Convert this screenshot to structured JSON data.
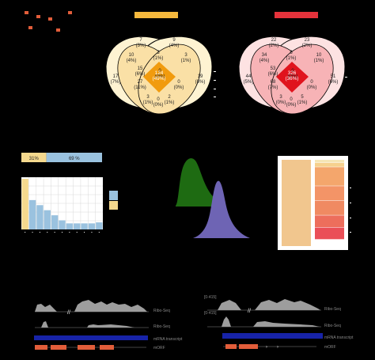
{
  "venn_left": {
    "regions": [
      "7\n(3%)",
      "9\n(4%)",
      "10\n(4%)",
      "3\n(1%)",
      "3\n(1%)",
      "0\n(0%)",
      "17\n(7%)",
      "15\n(6%)",
      "124\n(49%)",
      "19\n(8%)",
      "27\n(11%)",
      "0\n(0%)",
      "3\n(1%)",
      "2\n(1%)",
      "0\n(0%)"
    ],
    "colors": {
      "outer": "#fdf2d0",
      "mid": "#fae0a6",
      "inner": "#f5c66a",
      "core": "#f19b0e"
    }
  },
  "venn_right": {
    "regions": [
      "22\n(2%)",
      "23\n(2%)",
      "34\n(4%)",
      "6\n(1%)",
      "10\n(1%)",
      "0\n(0%)",
      "44\n(5%)",
      "53\n(6%)",
      "326\n(36%)",
      "51\n(6%)",
      "68\n(7%)",
      "0\n(0%)",
      "3\n(0%)",
      "5\n(1%)",
      "0\n(0%)"
    ],
    "colors": {
      "outer": "#fde2e2",
      "mid": "#f7b3b6",
      "inner": "#f08089",
      "core": "#e0131d"
    }
  },
  "split_bar": {
    "left_label": "31%",
    "right_label": "69 %",
    "left_fraction": 0.31,
    "left_color": "#f5d98e",
    "right_color": "#9ac2df"
  },
  "chart_data": [
    {
      "type": "bar",
      "values": [
        100,
        58,
        48,
        38,
        28,
        18,
        12,
        12,
        12,
        12,
        14
      ],
      "first_color": "#f5d98e",
      "bar_color": "#9ac2df",
      "grid": true
    },
    {
      "type": "area",
      "series": [
        {
          "color": "#1e6b12"
        },
        {
          "color": "#6e64b4"
        }
      ]
    },
    {
      "type": "bar",
      "stack_segments": [
        0.035,
        0.05,
        0.22,
        0.17,
        0.17,
        0.14,
        0.14
      ],
      "colors": [
        "#f5e6b6",
        "#f6d18e",
        "#f4a66c",
        "#f39467",
        "#f08a62",
        "#ed6e5c",
        "#ea4f57"
      ],
      "left_color": "#f1c68e"
    }
  ],
  "tracks": {
    "left": {
      "labels": [
        "Ribo-Seq",
        "Ribo-Seq",
        "mRNA transcript",
        "mORF"
      ]
    },
    "right": {
      "side_labels": [
        "[0-415]",
        "[0-415]"
      ],
      "labels": [
        "Ribo-Seq",
        "Ribo-Seq",
        "mRNA transcript",
        "mORF"
      ]
    },
    "transcript_color": "#1723a8",
    "orf_color": "#e25d3a"
  }
}
